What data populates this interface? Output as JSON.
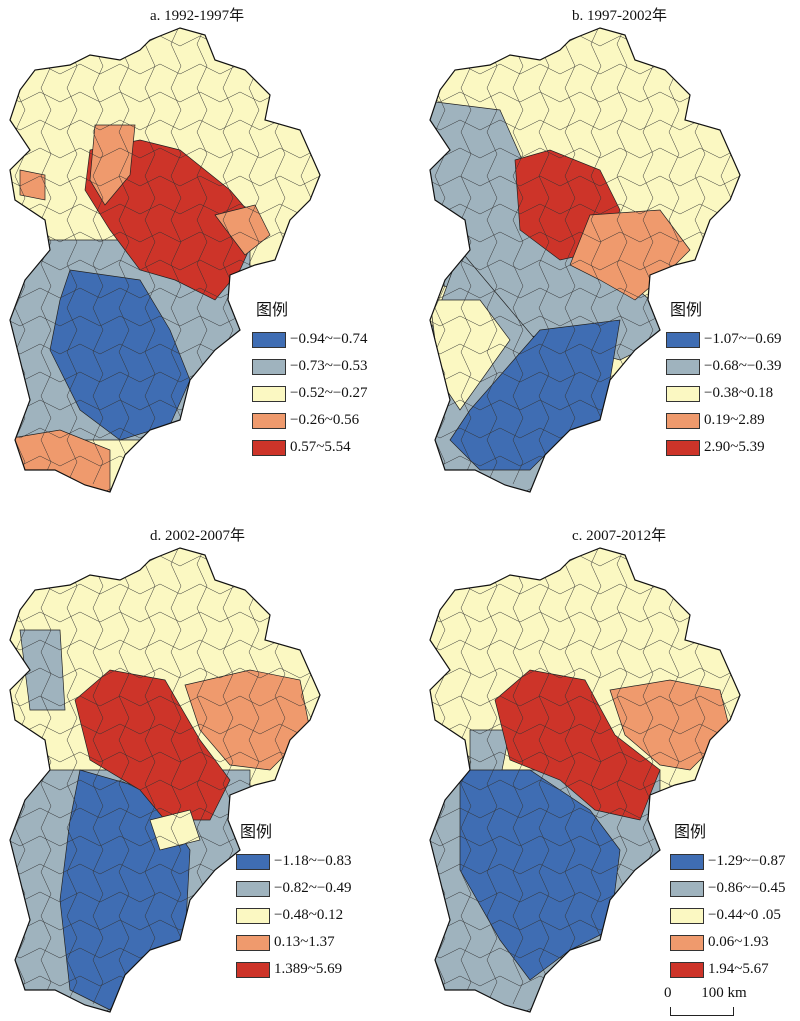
{
  "legend_heading": "图例",
  "class_colors": [
    "#3f6db3",
    "#9fb3be",
    "#fbf8c2",
    "#ef9a6d",
    "#cd3429"
  ],
  "panels": [
    {
      "id": "a",
      "title": "a. 1992-1997年",
      "classes": [
        "−0.94~−0.74",
        "−0.73~−0.53",
        "−0.52~−0.27",
        "−0.26~0.56",
        "0.57~5.54"
      ]
    },
    {
      "id": "b",
      "title": "b. 1997-2002年",
      "classes": [
        "−1.07~−0.69",
        "−0.68~−0.39",
        "−0.38~0.18",
        "0.19~2.89",
        "2.90~5.39"
      ]
    },
    {
      "id": "d",
      "title": "d. 2002-2007年",
      "classes": [
        "−1.18~−0.83",
        "−0.82~−0.49",
        "−0.48~0.12",
        "0.13~1.37",
        "1.389~5.69"
      ]
    },
    {
      "id": "c",
      "title": "c. 2007-2012年",
      "classes": [
        "−1.29~−0.87",
        "−0.86~−0.45",
        "−0.44~0 .05",
        "0.06~1.93",
        "1.94~5.67"
      ]
    }
  ],
  "scale_bar": {
    "start": "0",
    "end": "100 km"
  }
}
